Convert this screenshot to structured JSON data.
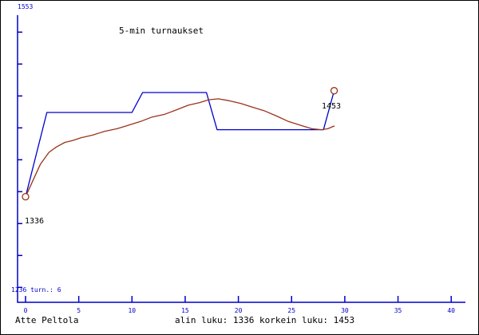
{
  "title": "5-min turnaukset",
  "labels": {
    "y_axis_top": "1553",
    "bottom_info": "1236 turn.: 6",
    "start_point": "1336",
    "end_point": "1453"
  },
  "footer": {
    "player_name": "Atte Peltola",
    "summary": "alin luku: 1336 korkein luku: 1453"
  },
  "colors": {
    "axis_blue": "#0000cc",
    "line_blue": "#0000cc",
    "line_brown": "#993319",
    "marker_brown": "#993319",
    "text_black": "#000000",
    "background": "#ffffff",
    "border": "#000000"
  },
  "chart_data": {
    "type": "line",
    "title": "5-min turnaukset",
    "xlabel": "",
    "ylabel": "",
    "x_axis": {
      "min": 0,
      "max": 40,
      "ticks": [
        0,
        5,
        10,
        15,
        20,
        25,
        30,
        35,
        40
      ]
    },
    "y_axis": {
      "min": 1236,
      "max": 1553,
      "top_label": "1553",
      "bottom_label": "1236",
      "tick_count": 9,
      "grid": false
    },
    "legend": "none",
    "lowest_value": 1336,
    "highest_value": 1453,
    "tournament_count": 6,
    "series": [
      {
        "name": "blue-step",
        "color": "#0000cc",
        "points": [
          [
            0,
            1336
          ],
          [
            2,
            1429
          ],
          [
            10,
            1429
          ],
          [
            11,
            1451
          ],
          [
            17,
            1451
          ],
          [
            18,
            1410
          ],
          [
            28,
            1410
          ],
          [
            29,
            1453
          ]
        ]
      },
      {
        "name": "brown-smooth",
        "color": "#993319",
        "points": [
          [
            0,
            1336
          ],
          [
            0.7,
            1354
          ],
          [
            1.4,
            1372
          ],
          [
            2.2,
            1385
          ],
          [
            2.9,
            1391
          ],
          [
            3.7,
            1396
          ],
          [
            4.4,
            1398
          ],
          [
            5.2,
            1401
          ],
          [
            6.3,
            1404
          ],
          [
            7.4,
            1408
          ],
          [
            8.6,
            1411
          ],
          [
            9.7,
            1415
          ],
          [
            10.8,
            1419
          ],
          [
            11.9,
            1424
          ],
          [
            13.1,
            1427
          ],
          [
            14.2,
            1432
          ],
          [
            15.3,
            1437
          ],
          [
            16.4,
            1440
          ],
          [
            17.2,
            1443
          ],
          [
            18.1,
            1444
          ],
          [
            19.1,
            1442
          ],
          [
            20.2,
            1439
          ],
          [
            21.3,
            1435
          ],
          [
            22.4,
            1431
          ],
          [
            23.6,
            1425
          ],
          [
            24.7,
            1419
          ],
          [
            25.8,
            1415
          ],
          [
            26.9,
            1411
          ],
          [
            27.8,
            1410
          ],
          [
            28.4,
            1411
          ],
          [
            29,
            1414
          ]
        ]
      }
    ],
    "markers": [
      {
        "x": 0,
        "value": 1336,
        "label": "1336"
      },
      {
        "x": 29,
        "value": 1453,
        "label": "1453"
      }
    ]
  }
}
